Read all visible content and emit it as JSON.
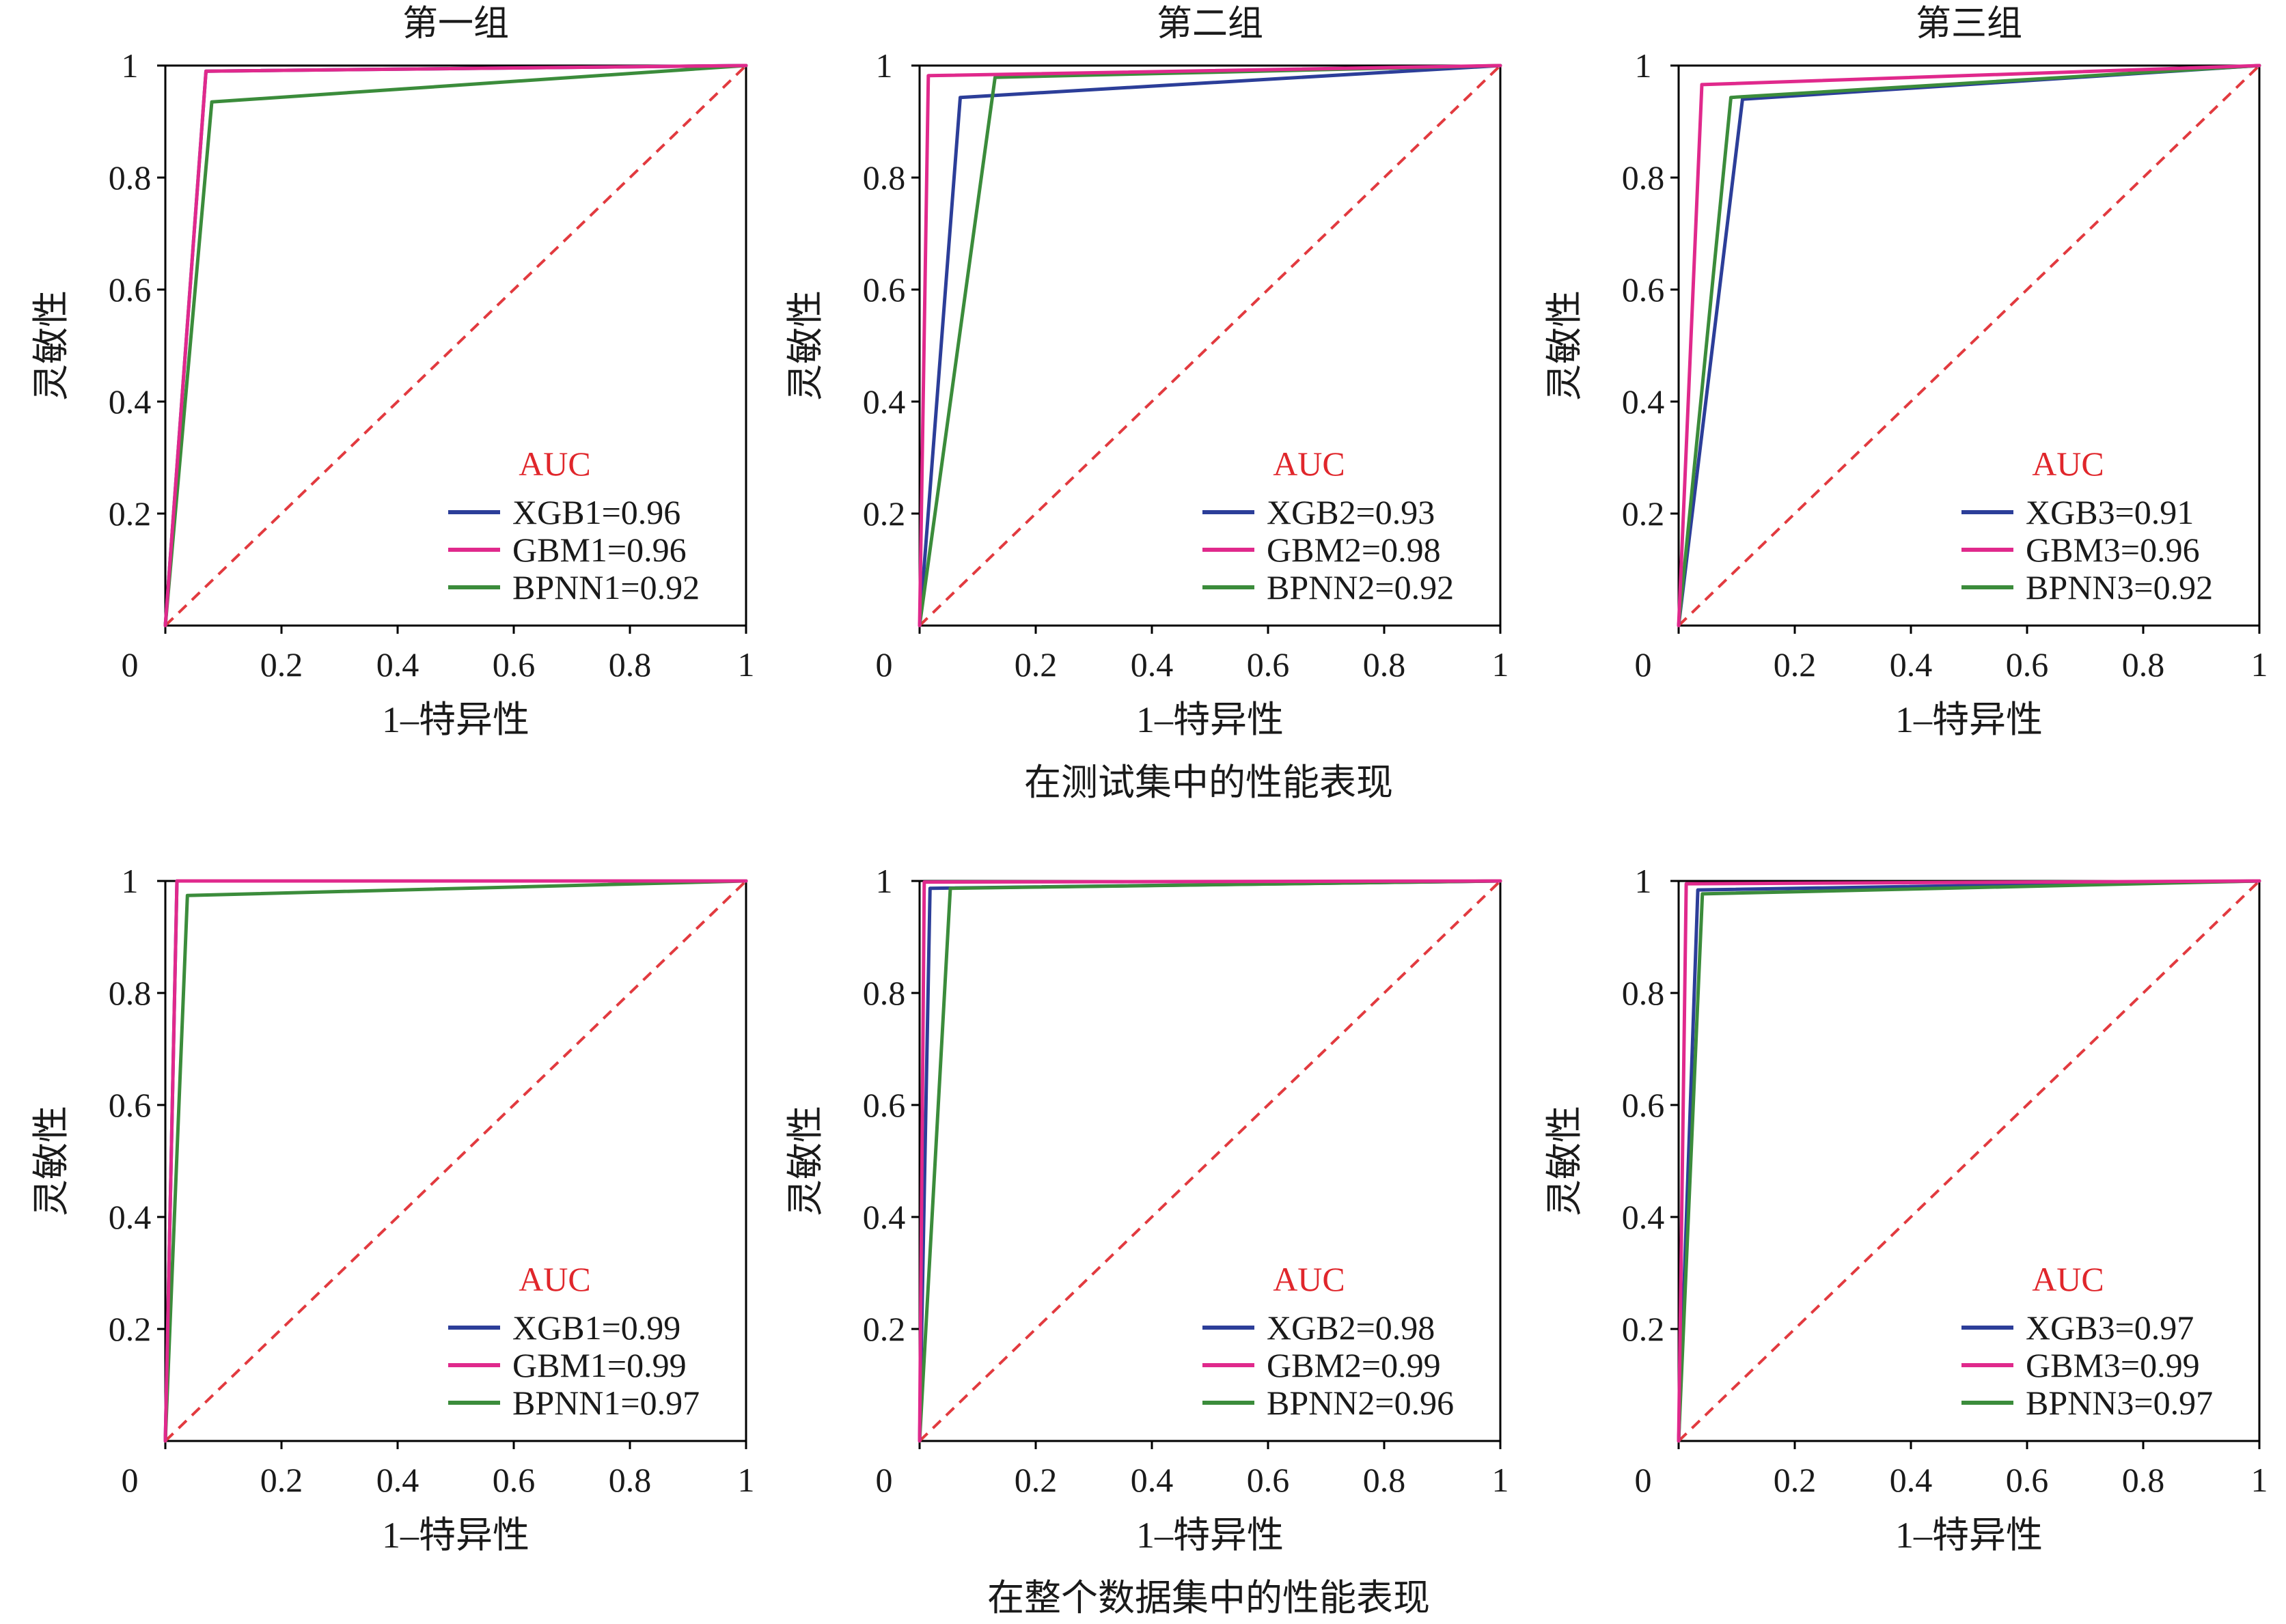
{
  "captions": [
    "在测试集中的性能表现",
    "在整个数据集中的性能表现"
  ],
  "colors": {
    "axis": "#000000",
    "reference_line": "#e23a3f",
    "legend_title": "#e0262b",
    "xgb": "#2c3e99",
    "gbm": "#e0298c",
    "bpnn": "#3b8c3b"
  },
  "chart_data": [
    {
      "type": "line",
      "title": "第一组",
      "xlabel": "1–特异性",
      "ylabel": "灵敏性",
      "xlim": [
        0,
        1
      ],
      "ylim": [
        0,
        1
      ],
      "x_ticks": {
        "values": [
          0,
          0.2,
          0.4,
          0.6,
          0.8,
          1
        ],
        "labels": [
          "0",
          "0.2",
          "0.4",
          "0.6",
          "0.8",
          "1"
        ]
      },
      "y_ticks": {
        "values": [
          0.2,
          0.4,
          0.6,
          0.8,
          1
        ],
        "labels": [
          "0.2",
          "0.4",
          "0.6",
          "0.8",
          "1"
        ]
      },
      "grid": false,
      "legend": {
        "title": "AUC",
        "position": "lower-right"
      },
      "reference_line": {
        "x": [
          0,
          1
        ],
        "y": [
          0,
          1
        ],
        "dashed": true
      },
      "series": [
        {
          "name": "XGB1=0.96",
          "color": "#2c3e99",
          "x": [
            0,
            0.07,
            1
          ],
          "y": [
            0,
            0.99,
            1
          ]
        },
        {
          "name": "GBM1=0.96",
          "color": "#e0298c",
          "x": [
            0,
            0.07,
            1
          ],
          "y": [
            0,
            0.99,
            1
          ]
        },
        {
          "name": "BPNN1=0.92",
          "color": "#3b8c3b",
          "x": [
            0,
            0.08,
            1
          ],
          "y": [
            0,
            0.935,
            1
          ]
        }
      ]
    },
    {
      "type": "line",
      "title": "第二组",
      "xlabel": "1–特异性",
      "ylabel": "灵敏性",
      "xlim": [
        0,
        1
      ],
      "ylim": [
        0,
        1
      ],
      "x_ticks": {
        "values": [
          0,
          0.2,
          0.4,
          0.6,
          0.8,
          1
        ],
        "labels": [
          "0",
          "0.2",
          "0.4",
          "0.6",
          "0.8",
          "1"
        ]
      },
      "y_ticks": {
        "values": [
          0.2,
          0.4,
          0.6,
          0.8,
          1
        ],
        "labels": [
          "0.2",
          "0.4",
          "0.6",
          "0.8",
          "1"
        ]
      },
      "grid": false,
      "legend": {
        "title": "AUC",
        "position": "lower-right"
      },
      "reference_line": {
        "x": [
          0,
          1
        ],
        "y": [
          0,
          1
        ],
        "dashed": true
      },
      "series": [
        {
          "name": "XGB2=0.93",
          "color": "#2c3e99",
          "x": [
            0,
            0.07,
            1
          ],
          "y": [
            0,
            0.943,
            1
          ]
        },
        {
          "name": "GBM2=0.98",
          "color": "#e0298c",
          "x": [
            0,
            0.015,
            1
          ],
          "y": [
            0,
            0.982,
            1
          ]
        },
        {
          "name": "BPNN2=0.92",
          "color": "#3b8c3b",
          "x": [
            0,
            0.13,
            1
          ],
          "y": [
            0,
            0.979,
            1
          ]
        }
      ]
    },
    {
      "type": "line",
      "title": "第三组",
      "xlabel": "1–特异性",
      "ylabel": "灵敏性",
      "xlim": [
        0,
        1
      ],
      "ylim": [
        0,
        1
      ],
      "x_ticks": {
        "values": [
          0,
          0.2,
          0.4,
          0.6,
          0.8,
          1
        ],
        "labels": [
          "0",
          "0.2",
          "0.4",
          "0.6",
          "0.8",
          "1"
        ]
      },
      "y_ticks": {
        "values": [
          0.2,
          0.4,
          0.6,
          0.8,
          1
        ],
        "labels": [
          "0.2",
          "0.4",
          "0.6",
          "0.8",
          "1"
        ]
      },
      "grid": false,
      "legend": {
        "title": "AUC",
        "position": "lower-right"
      },
      "reference_line": {
        "x": [
          0,
          1
        ],
        "y": [
          0,
          1
        ],
        "dashed": true
      },
      "series": [
        {
          "name": "XGB3=0.91",
          "color": "#2c3e99",
          "x": [
            0,
            0.11,
            1
          ],
          "y": [
            0,
            0.94,
            1
          ]
        },
        {
          "name": "GBM3=0.96",
          "color": "#e0298c",
          "x": [
            0,
            0.04,
            1
          ],
          "y": [
            0,
            0.966,
            1
          ]
        },
        {
          "name": "BPNN3=0.92",
          "color": "#3b8c3b",
          "x": [
            0,
            0.09,
            1
          ],
          "y": [
            0,
            0.943,
            1
          ]
        }
      ]
    },
    {
      "type": "line",
      "xlabel": "1–特异性",
      "ylabel": "灵敏性",
      "xlim": [
        0,
        1
      ],
      "ylim": [
        0,
        1
      ],
      "x_ticks": {
        "values": [
          0,
          0.2,
          0.4,
          0.6,
          0.8,
          1
        ],
        "labels": [
          "0",
          "0.2",
          "0.4",
          "0.6",
          "0.8",
          "1"
        ]
      },
      "y_ticks": {
        "values": [
          0.2,
          0.4,
          0.6,
          0.8,
          1
        ],
        "labels": [
          "0.2",
          "0.4",
          "0.6",
          "0.8",
          "1"
        ]
      },
      "grid": false,
      "legend": {
        "title": "AUC",
        "position": "lower-right"
      },
      "reference_line": {
        "x": [
          0,
          1
        ],
        "y": [
          0,
          1
        ],
        "dashed": true
      },
      "series": [
        {
          "name": "XGB1=0.99",
          "color": "#2c3e99",
          "x": [
            0,
            0.02,
            1
          ],
          "y": [
            0,
            1,
            1
          ]
        },
        {
          "name": "GBM1=0.99",
          "color": "#e0298c",
          "x": [
            0,
            0.02,
            1
          ],
          "y": [
            0,
            1,
            1
          ]
        },
        {
          "name": "BPNN1=0.97",
          "color": "#3b8c3b",
          "x": [
            0,
            0.038,
            1
          ],
          "y": [
            0,
            0.974,
            1
          ]
        }
      ]
    },
    {
      "type": "line",
      "xlabel": "1–特异性",
      "ylabel": "灵敏性",
      "xlim": [
        0,
        1
      ],
      "ylim": [
        0,
        1
      ],
      "x_ticks": {
        "values": [
          0,
          0.2,
          0.4,
          0.6,
          0.8,
          1
        ],
        "labels": [
          "0",
          "0.2",
          "0.4",
          "0.6",
          "0.8",
          "1"
        ]
      },
      "y_ticks": {
        "values": [
          0.2,
          0.4,
          0.6,
          0.8,
          1
        ],
        "labels": [
          "0.2",
          "0.4",
          "0.6",
          "0.8",
          "1"
        ]
      },
      "grid": false,
      "legend": {
        "title": "AUC",
        "position": "lower-right"
      },
      "reference_line": {
        "x": [
          0,
          1
        ],
        "y": [
          0,
          1
        ],
        "dashed": true
      },
      "series": [
        {
          "name": "XGB2=0.98",
          "color": "#2c3e99",
          "x": [
            0,
            0.018,
            1
          ],
          "y": [
            0,
            0.987,
            1
          ]
        },
        {
          "name": "GBM2=0.99",
          "color": "#e0298c",
          "x": [
            0,
            0.008,
            1
          ],
          "y": [
            0,
            0.998,
            1
          ]
        },
        {
          "name": "BPNN2=0.96",
          "color": "#3b8c3b",
          "x": [
            0,
            0.053,
            1
          ],
          "y": [
            0,
            0.987,
            1
          ]
        }
      ]
    },
    {
      "type": "line",
      "xlabel": "1–特异性",
      "ylabel": "灵敏性",
      "xlim": [
        0,
        1
      ],
      "ylim": [
        0,
        1
      ],
      "x_ticks": {
        "values": [
          0,
          0.2,
          0.4,
          0.6,
          0.8,
          1
        ],
        "labels": [
          "0",
          "0.2",
          "0.4",
          "0.6",
          "0.8",
          "1"
        ]
      },
      "y_ticks": {
        "values": [
          0.2,
          0.4,
          0.6,
          0.8,
          1
        ],
        "labels": [
          "0.2",
          "0.4",
          "0.6",
          "0.8",
          "1"
        ]
      },
      "grid": false,
      "legend": {
        "title": "AUC",
        "position": "lower-right"
      },
      "reference_line": {
        "x": [
          0,
          1
        ],
        "y": [
          0,
          1
        ],
        "dashed": true
      },
      "series": [
        {
          "name": "XGB3=0.97",
          "color": "#2c3e99",
          "x": [
            0,
            0.033,
            1
          ],
          "y": [
            0,
            0.984,
            1
          ]
        },
        {
          "name": "GBM3=0.99",
          "color": "#e0298c",
          "x": [
            0,
            0.013,
            1
          ],
          "y": [
            0,
            0.995,
            1
          ]
        },
        {
          "name": "BPNN3=0.97",
          "color": "#3b8c3b",
          "x": [
            0,
            0.041,
            1
          ],
          "y": [
            0,
            0.977,
            1
          ]
        }
      ]
    }
  ]
}
